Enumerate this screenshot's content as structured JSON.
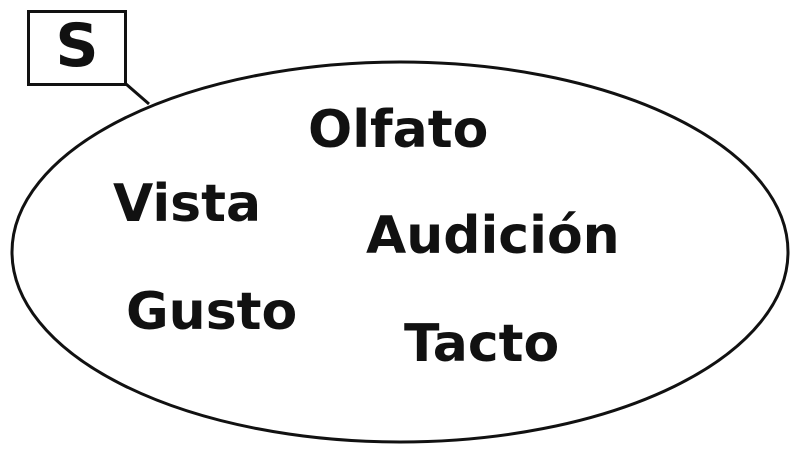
{
  "set": {
    "label": "S",
    "elements": [
      "Olfato",
      "Vista",
      "Audición",
      "Gusto",
      "Tacto"
    ]
  },
  "colors": {
    "ink": "#111111",
    "background": "#ffffff"
  }
}
